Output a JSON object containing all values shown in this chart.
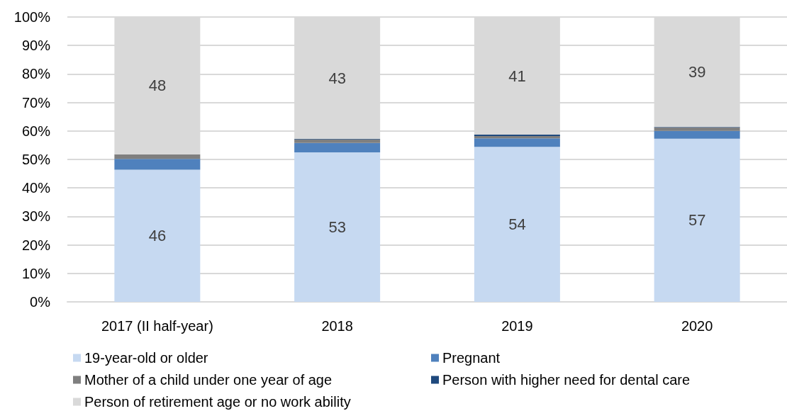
{
  "chart_data": {
    "type": "bar",
    "stacked": true,
    "categories": [
      "2017 (II half-year)",
      "2018",
      "2019",
      "2020"
    ],
    "series": [
      {
        "name": "19-year-old or older",
        "color": "#c6d9f1",
        "values": [
          46.4,
          52.5,
          54.4,
          57.3
        ],
        "value_labels": [
          "46",
          "53",
          "54",
          "57"
        ]
      },
      {
        "name": "Pregnant",
        "color": "#4f81bd",
        "values": [
          3.8,
          3.3,
          3.0,
          2.7
        ]
      },
      {
        "name": "Mother of a child under one year of age",
        "color": "#7f7f7f",
        "values": [
          1.6,
          1.2,
          0.8,
          1.2
        ]
      },
      {
        "name": "Person with higher need for dental care",
        "color": "#1f497d",
        "values": [
          0,
          0.2,
          0.5,
          0.2
        ]
      },
      {
        "name": "Person of retirement age or no work ability",
        "color": "#d9d9d9",
        "values": [
          48.2,
          42.8,
          41.3,
          38.6
        ],
        "value_labels": [
          "48",
          "43",
          "41",
          "39"
        ]
      }
    ],
    "ylim": [
      0,
      100
    ],
    "yticks": [
      {
        "value": 0,
        "label": "0%"
      },
      {
        "value": 10,
        "label": "10%"
      },
      {
        "value": 20,
        "label": "20%"
      },
      {
        "value": 30,
        "label": "30%"
      },
      {
        "value": 40,
        "label": "40%"
      },
      {
        "value": 50,
        "label": "50%"
      },
      {
        "value": 60,
        "label": "60%"
      },
      {
        "value": 70,
        "label": "70%"
      },
      {
        "value": 80,
        "label": "80%"
      },
      {
        "value": 90,
        "label": "90%"
      },
      {
        "value": 100,
        "label": "100%"
      }
    ],
    "grid": "y",
    "legend": "bottom"
  }
}
